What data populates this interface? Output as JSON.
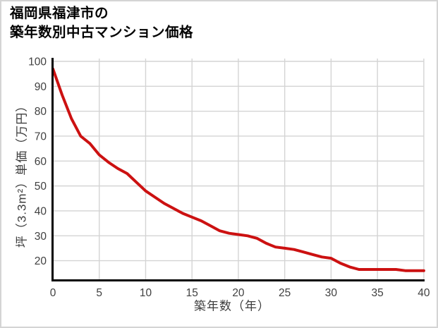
{
  "title": {
    "line1": "福岡県福津市の",
    "line2": "築年数別中古マンション価格"
  },
  "chart_data": {
    "type": "line",
    "title": "福岡県福津市の築年数別中古マンション価格",
    "title_lines": [
      "福岡県福津市の",
      "築年数別中古マンション価格"
    ],
    "xlabel": "築年数（年）",
    "ylabel": "坪（3.3m²）単価（万円）",
    "x": [
      0,
      1,
      2,
      3,
      4,
      5,
      6,
      7,
      8,
      9,
      10,
      11,
      12,
      13,
      14,
      15,
      16,
      17,
      18,
      19,
      20,
      21,
      22,
      23,
      24,
      25,
      26,
      27,
      28,
      29,
      30,
      31,
      32,
      33,
      34,
      35,
      36,
      37,
      38,
      39,
      40
    ],
    "values": [
      97,
      86.5,
      77,
      70,
      67,
      62.5,
      59.5,
      57,
      55,
      51.5,
      48,
      45.5,
      43,
      41,
      39,
      37.5,
      36,
      34,
      32,
      31,
      30.5,
      30,
      29,
      27,
      25.5,
      25,
      24.5,
      23.5,
      22.5,
      21.5,
      21,
      19,
      17.5,
      16.5,
      16.5,
      16.5,
      16.5,
      16.5,
      16,
      16,
      16
    ],
    "x_ticks": [
      0,
      5,
      10,
      15,
      20,
      25,
      30,
      35,
      40
    ],
    "y_ticks": [
      20,
      30,
      40,
      50,
      60,
      70,
      80,
      90,
      100
    ],
    "xlim": [
      0,
      40
    ],
    "ylim": [
      12,
      101
    ],
    "grid": true,
    "legend": "none",
    "colors": {
      "line": "#cc1111",
      "grid": "#d4d4d4",
      "spine": "#000000",
      "tick_text": "#404040",
      "axis_label_text": "#3d3d3d",
      "title_text": "#000000",
      "background": "#ffffff",
      "frame_border": "#d4d4d4"
    }
  }
}
